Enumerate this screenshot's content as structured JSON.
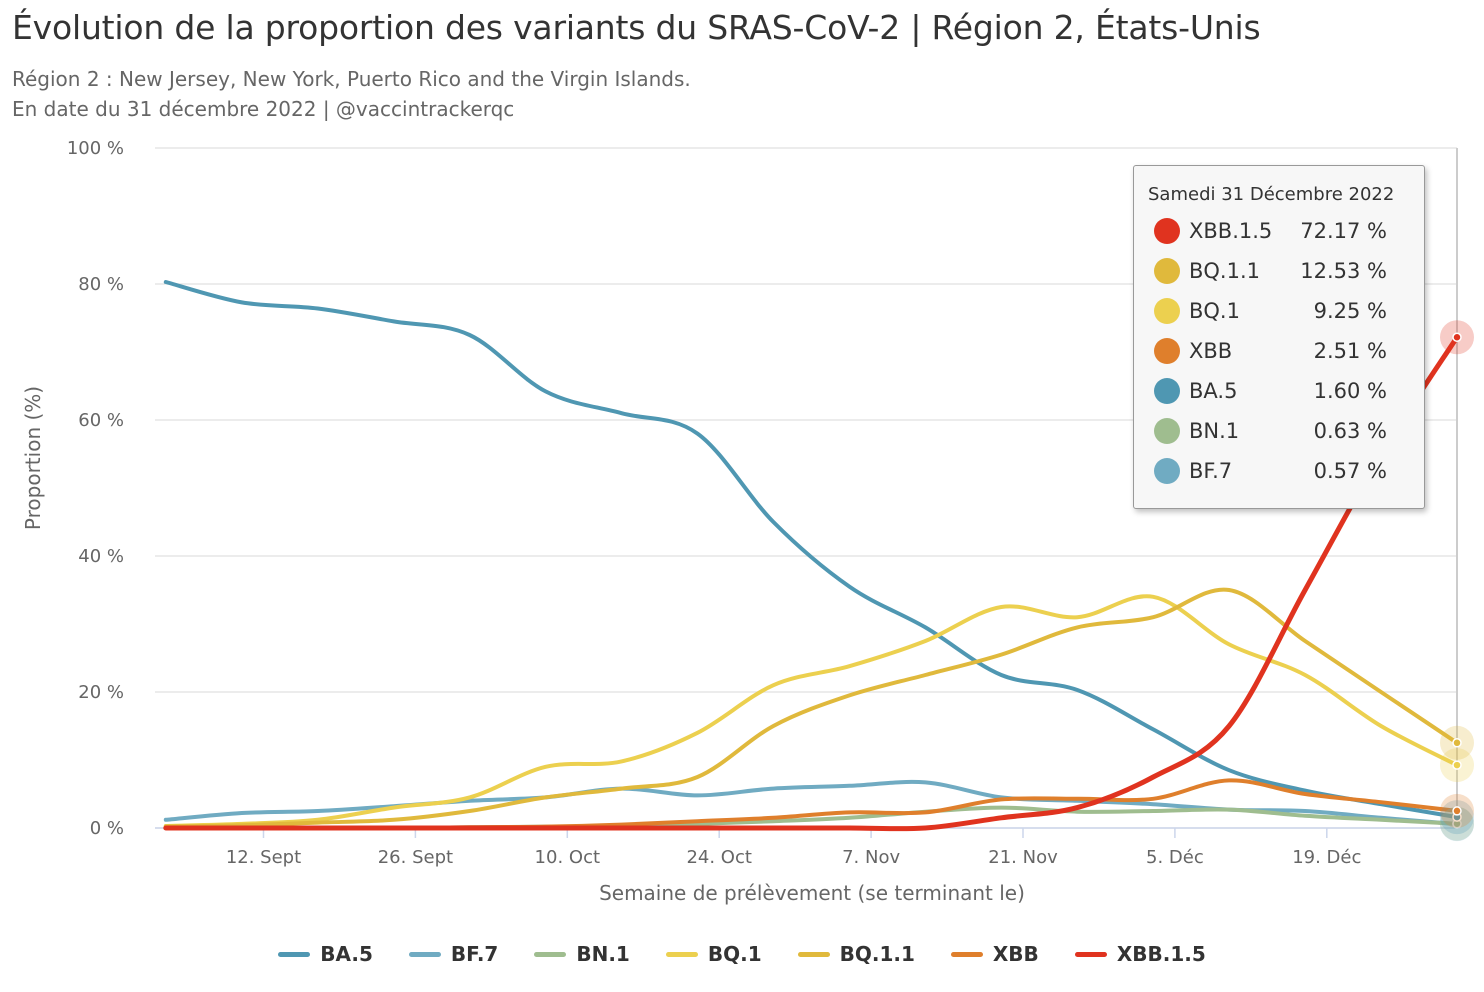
{
  "title": "Évolution de la proportion des variants du SRAS-CoV-2 | Région 2, États-Unis",
  "subtitle_line1": "Région 2 : New Jersey, New York, Puerto Rico and the Virgin Islands.",
  "subtitle_line2": "En date du 31 décembre 2022 | @vaccintrackerqc",
  "tooltip": {
    "date": "Samedi 31 Décembre 2022",
    "rows": [
      {
        "name": "XBB.1.5",
        "value": "72.17 %",
        "color": "#e0331f"
      },
      {
        "name": "BQ.1.1",
        "value": "12.53 %",
        "color": "#e0b93c"
      },
      {
        "name": "BQ.1",
        "value": "9.25 %",
        "color": "#ecd04f"
      },
      {
        "name": "XBB",
        "value": "2.51 %",
        "color": "#df7f2c"
      },
      {
        "name": "BA.5",
        "value": "1.60 %",
        "color": "#4f97b2"
      },
      {
        "name": "BN.1",
        "value": "0.63 %",
        "color": "#9fbd8f"
      },
      {
        "name": "BF.7",
        "value": "0.57 %",
        "color": "#70abc2"
      }
    ]
  },
  "chart_data": {
    "type": "line",
    "title": "Évolution de la proportion des variants du SRAS-CoV-2 | Région 2, États-Unis",
    "xlabel": "Semaine de prélèvement (se terminant le)",
    "ylabel": "Proportion (%)",
    "ylim": [
      0,
      100
    ],
    "y_ticks": [
      "0 %",
      "20 %",
      "40 %",
      "60 %",
      "80 %",
      "100 %"
    ],
    "x_ticks": [
      "12. Sept",
      "26. Sept",
      "10. Oct",
      "24. Oct",
      "7. Nov",
      "21. Nov",
      "5. Déc",
      "19. Déc"
    ],
    "x_tick_dates": [
      "2022-09-12",
      "2022-09-26",
      "2022-10-10",
      "2022-10-24",
      "2022-11-07",
      "2022-11-21",
      "2022-12-05",
      "2022-12-19"
    ],
    "x_range": [
      "2022-09-02",
      "2022-12-31"
    ],
    "grid": true,
    "legend_position": "bottom-center",
    "x": [
      "2022-09-03",
      "2022-09-10",
      "2022-09-17",
      "2022-09-24",
      "2022-10-01",
      "2022-10-08",
      "2022-10-15",
      "2022-10-22",
      "2022-10-29",
      "2022-11-05",
      "2022-11-12",
      "2022-11-19",
      "2022-11-26",
      "2022-12-03",
      "2022-12-10",
      "2022-12-17",
      "2022-12-24",
      "2022-12-31"
    ],
    "series": [
      {
        "name": "BA.5",
        "color": "#4f97b2",
        "values": [
          80.3,
          77.3,
          76.4,
          74.5,
          72.5,
          64.2,
          61.0,
          58.0,
          45.0,
          35.5,
          29.5,
          22.5,
          20.3,
          14.5,
          8.5,
          5.5,
          3.5,
          1.6
        ]
      },
      {
        "name": "BF.7",
        "color": "#70abc2",
        "values": [
          1.2,
          2.2,
          2.5,
          3.2,
          4.0,
          4.5,
          5.8,
          4.8,
          5.8,
          6.2,
          6.7,
          4.5,
          4.0,
          3.5,
          2.7,
          2.5,
          1.5,
          0.57
        ]
      },
      {
        "name": "BN.1",
        "color": "#9fbd8f",
        "values": [
          0.0,
          0.0,
          0.0,
          0.0,
          0.1,
          0.2,
          0.3,
          0.6,
          1.0,
          1.5,
          2.4,
          3.0,
          2.4,
          2.5,
          2.7,
          1.8,
          1.2,
          0.63
        ]
      },
      {
        "name": "BQ.1",
        "color": "#ecd04f",
        "values": [
          0.3,
          0.6,
          1.2,
          3.0,
          4.5,
          9.0,
          9.8,
          14.0,
          21.0,
          23.8,
          27.5,
          32.5,
          31.0,
          34.0,
          27.0,
          22.5,
          15.0,
          9.25
        ]
      },
      {
        "name": "BQ.1.1",
        "color": "#e0b93c",
        "values": [
          0.2,
          0.4,
          0.8,
          1.2,
          2.5,
          4.5,
          5.8,
          7.5,
          15.0,
          19.5,
          22.5,
          25.5,
          29.5,
          31.0,
          35.0,
          27.5,
          20.0,
          12.53
        ]
      },
      {
        "name": "XBB",
        "color": "#df7f2c",
        "values": [
          0.0,
          0.0,
          0.0,
          0.0,
          0.1,
          0.2,
          0.5,
          1.0,
          1.5,
          2.3,
          2.3,
          4.2,
          4.3,
          4.3,
          7.0,
          5.0,
          3.8,
          2.51
        ]
      },
      {
        "name": "XBB.1.5",
        "color": "#e0331f",
        "values": [
          0.0,
          0.0,
          0.0,
          0.0,
          0.0,
          0.0,
          0.0,
          0.0,
          0.0,
          0.0,
          0.0,
          1.5,
          3.0,
          7.5,
          15.0,
          35.0,
          55.0,
          72.17
        ]
      }
    ]
  }
}
